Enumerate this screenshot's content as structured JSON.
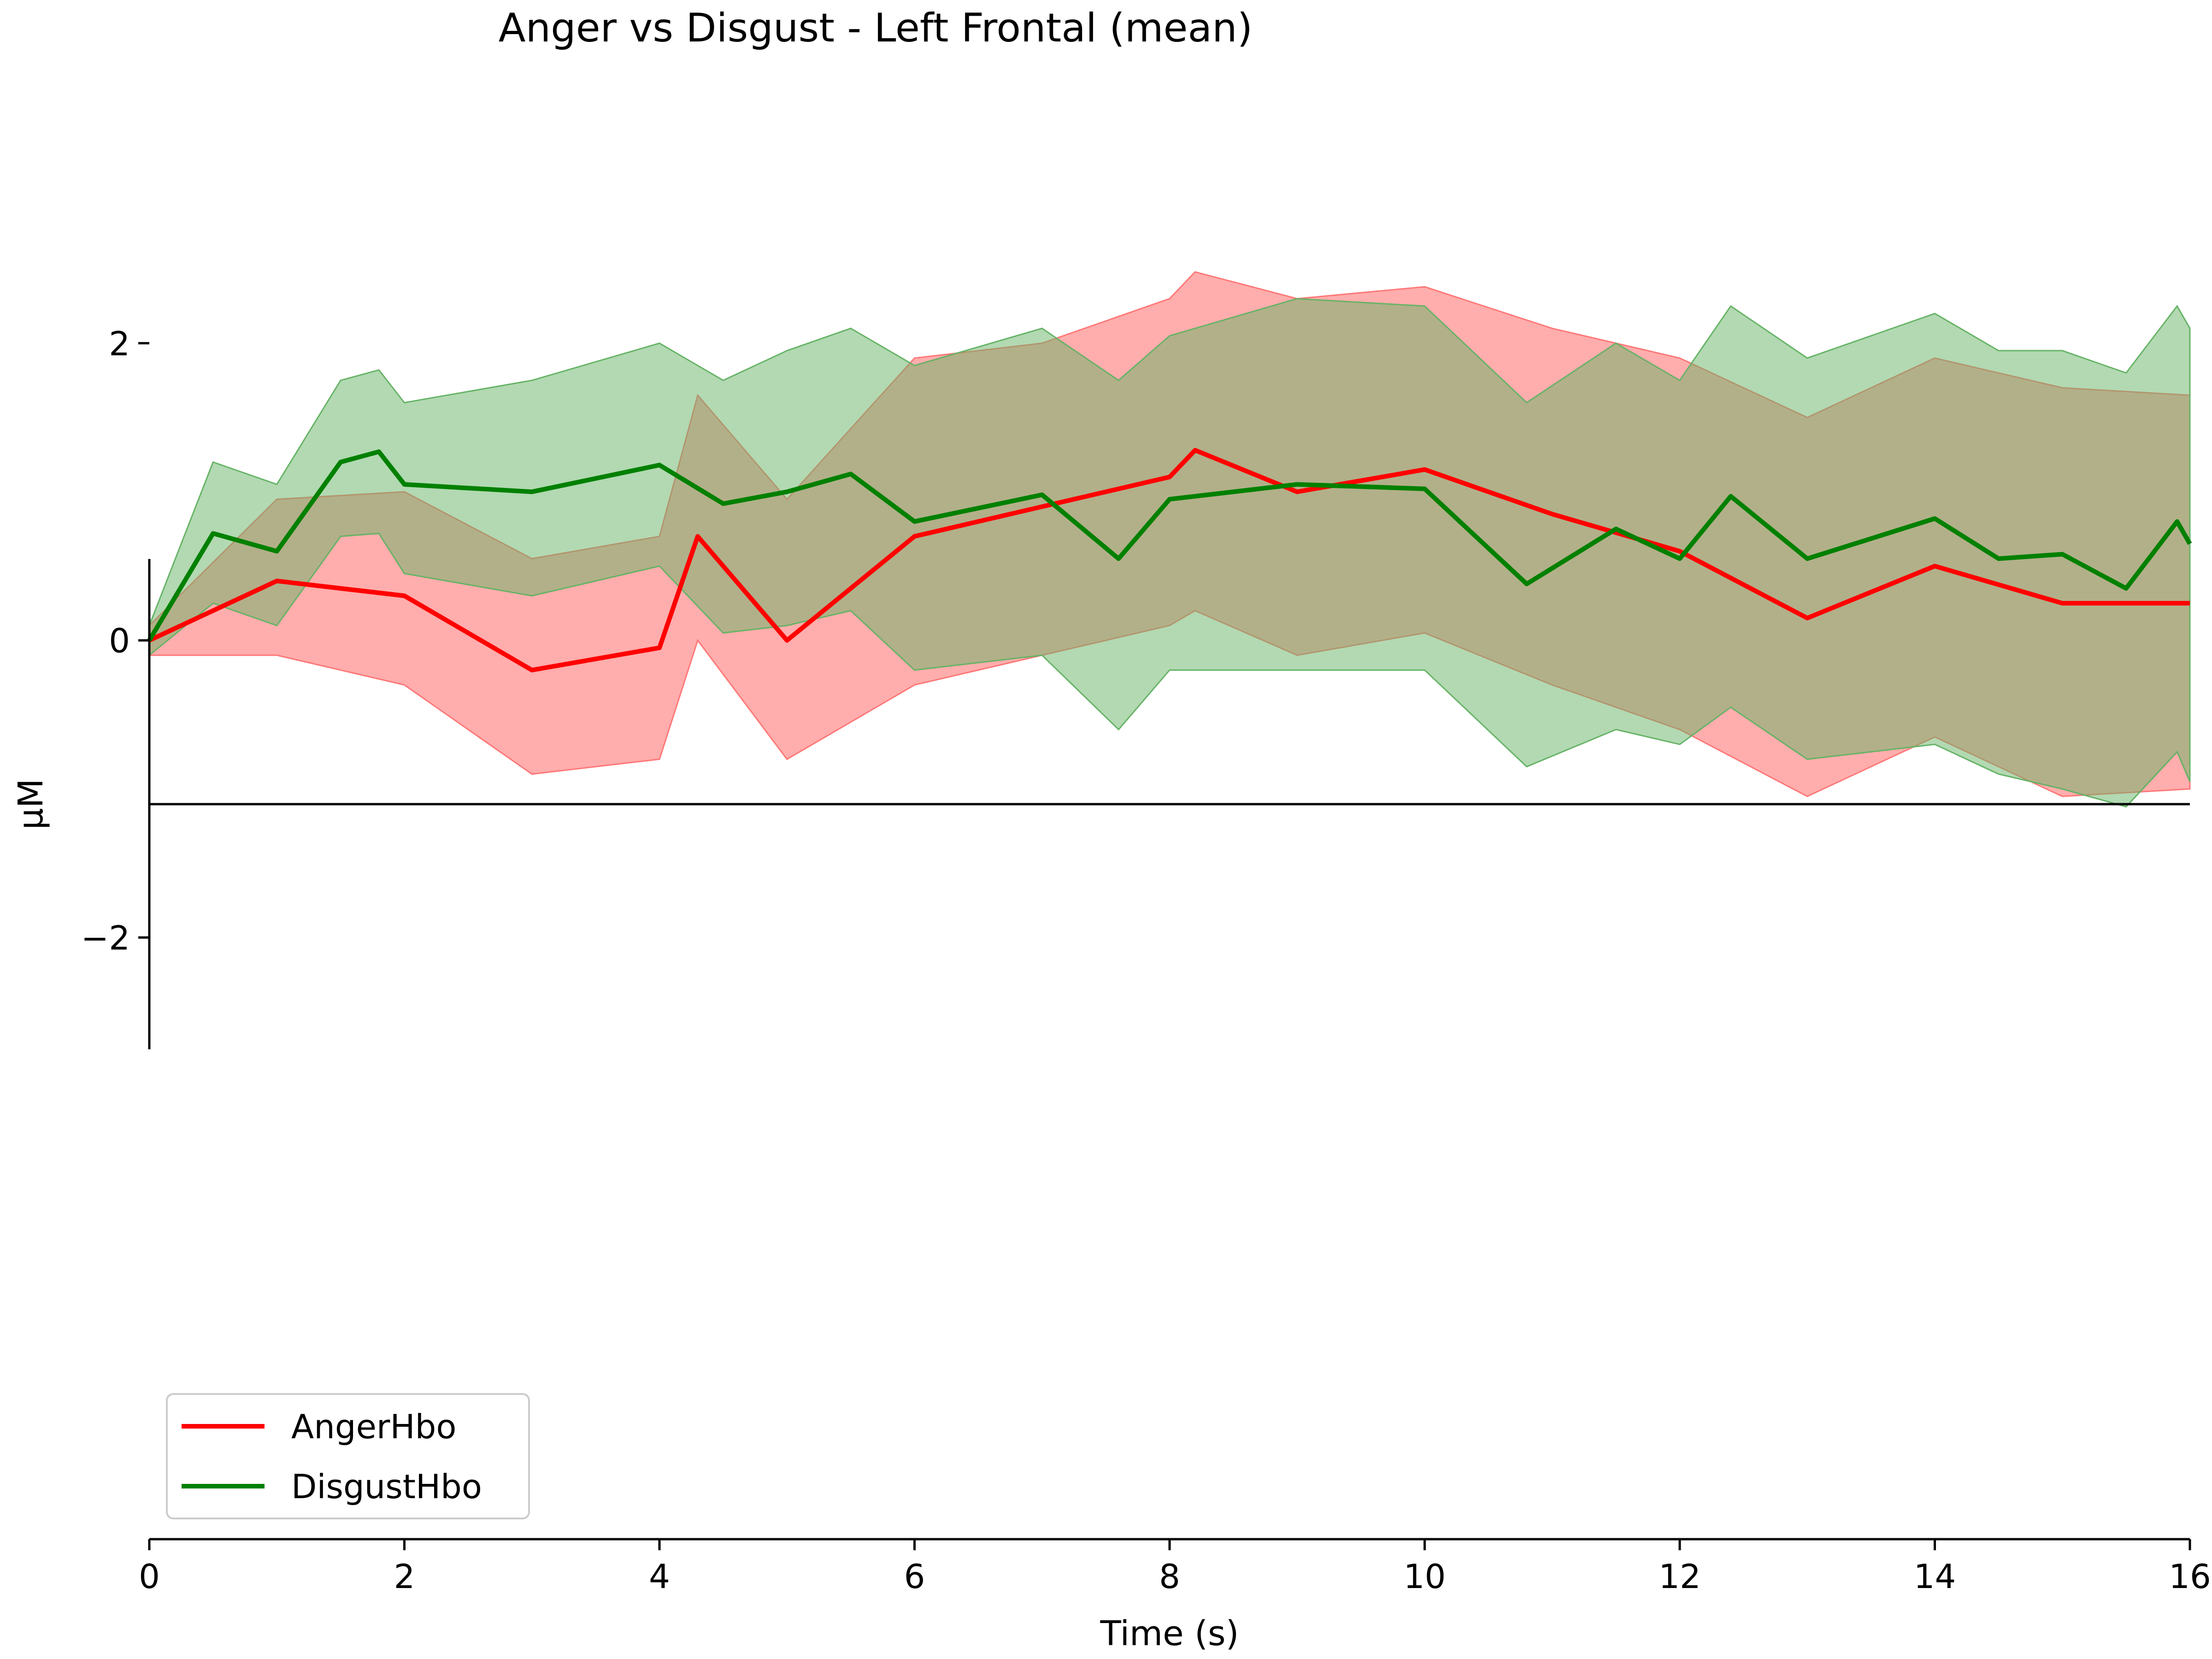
{
  "chart_data": {
    "type": "line",
    "title": "Anger vs Disgust - Left Frontal (mean)",
    "xlabel": "Time (s)",
    "ylabel": "µM",
    "xlim": [
      0,
      16
    ],
    "ylim": [
      -6,
      4
    ],
    "xticks": [
      "0",
      "2",
      "4",
      "6",
      "8",
      "10",
      "12",
      "14",
      "16"
    ],
    "yticks": [
      "−2",
      "0",
      "2"
    ],
    "legend_placement": "lower-left",
    "grid": false,
    "zero_line": true,
    "series": [
      {
        "name": "AngerHbo",
        "color": "#ff0000",
        "band_color": "#ff7777",
        "x": [
          0,
          1,
          2,
          3,
          4,
          4.3,
          5,
          6,
          7,
          8,
          8.2,
          9,
          10,
          11,
          12,
          13,
          14,
          15,
          16
        ],
        "mean": [
          0.0,
          0.4,
          0.3,
          -0.2,
          -0.05,
          0.7,
          0.0,
          0.7,
          0.9,
          1.1,
          1.28,
          1.0,
          1.15,
          0.85,
          0.6,
          0.15,
          0.5,
          0.25,
          0.25
        ],
        "upper": [
          0.1,
          0.95,
          1.0,
          0.55,
          0.7,
          1.65,
          0.95,
          1.9,
          2.0,
          2.3,
          2.48,
          2.3,
          2.38,
          2.1,
          1.9,
          1.5,
          1.9,
          1.7,
          1.65
        ],
        "lower": [
          -0.1,
          -0.1,
          -0.3,
          -0.9,
          -0.8,
          0.0,
          -0.8,
          -0.3,
          -0.1,
          0.1,
          0.2,
          -0.1,
          0.05,
          -0.3,
          -0.6,
          -1.05,
          -0.65,
          -1.05,
          -1.0
        ]
      },
      {
        "name": "DisgustHbo",
        "color": "#008000",
        "band_color": "#66b366",
        "x": [
          0,
          0.5,
          1,
          1.5,
          1.8,
          2,
          3,
          4,
          4.5,
          5,
          5.5,
          6,
          7,
          7.6,
          8,
          9,
          10,
          10.8,
          11.5,
          12,
          12.4,
          13,
          14,
          14.5,
          15,
          15.5,
          15.9,
          16
        ],
        "mean": [
          0.0,
          0.72,
          0.6,
          1.2,
          1.27,
          1.05,
          1.0,
          1.18,
          0.92,
          1.0,
          1.12,
          0.8,
          0.98,
          0.55,
          0.95,
          1.05,
          1.02,
          0.38,
          0.75,
          0.55,
          0.97,
          0.55,
          0.82,
          0.55,
          0.58,
          0.35,
          0.8,
          0.65
        ],
        "upper": [
          0.1,
          1.2,
          1.05,
          1.75,
          1.82,
          1.6,
          1.75,
          2.0,
          1.75,
          1.95,
          2.1,
          1.85,
          2.1,
          1.75,
          2.05,
          2.3,
          2.25,
          1.6,
          2.0,
          1.75,
          2.25,
          1.9,
          2.2,
          1.95,
          1.95,
          1.8,
          2.25,
          2.1
        ],
        "lower": [
          -0.1,
          0.25,
          0.1,
          0.7,
          0.72,
          0.45,
          0.3,
          0.5,
          0.05,
          0.1,
          0.2,
          -0.2,
          -0.1,
          -0.6,
          -0.2,
          -0.2,
          -0.2,
          -0.85,
          -0.6,
          -0.7,
          -0.45,
          -0.8,
          -0.7,
          -0.9,
          -1.0,
          -1.12,
          -0.75,
          -0.95
        ]
      }
    ]
  }
}
